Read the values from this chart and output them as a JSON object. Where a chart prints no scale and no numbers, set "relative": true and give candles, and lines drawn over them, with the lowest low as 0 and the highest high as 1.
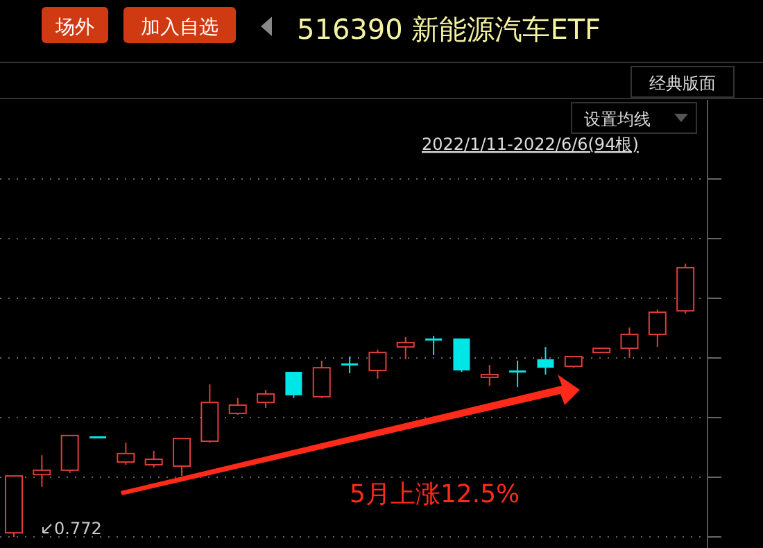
{
  "chart_data": {
    "type": "candlestick",
    "title": "516390 新能源汽车ETF",
    "relative": true,
    "grid": "y",
    "categories": [
      null,
      null,
      null,
      null,
      null,
      null,
      null,
      null,
      null,
      null,
      null,
      null,
      null,
      null,
      null,
      null,
      null,
      null,
      null,
      null,
      null,
      null,
      null,
      null,
      null
    ],
    "ohlc": [
      [
        0.015,
        0.223,
        0,
        0.223
      ],
      [
        0.228,
        0.299,
        0.183,
        0.244
      ],
      [
        0.244,
        0.371,
        0.234,
        0.371
      ],
      [
        0.368,
        0.368,
        0.363,
        0.363
      ],
      [
        0.274,
        0.345,
        0.264,
        0.305
      ],
      [
        0.264,
        0.315,
        0.254,
        0.284
      ],
      [
        0.259,
        0.36,
        0.223,
        0.36
      ],
      [
        0.35,
        0.558,
        0.345,
        0.492
      ],
      [
        0.452,
        0.508,
        0.447,
        0.482
      ],
      [
        0.492,
        0.538,
        0.472,
        0.523
      ],
      [
        0.604,
        0.604,
        0.508,
        0.518
      ],
      [
        0.513,
        0.645,
        0.508,
        0.619
      ],
      [
        0.635,
        0.66,
        0.599,
        0.632
      ],
      [
        0.609,
        0.685,
        0.579,
        0.675
      ],
      [
        0.695,
        0.731,
        0.65,
        0.711
      ],
      [
        0.726,
        0.736,
        0.665,
        0.723
      ],
      [
        0.726,
        0.726,
        0.604,
        0.609
      ],
      [
        0.584,
        0.629,
        0.553,
        0.594
      ],
      [
        0.609,
        0.645,
        0.548,
        0.607
      ],
      [
        0.65,
        0.695,
        0.594,
        0.619
      ],
      [
        0.624,
        0.66,
        0.619,
        0.66
      ],
      [
        0.675,
        0.69,
        0.675,
        0.69
      ],
      [
        0.69,
        0.766,
        0.655,
        0.741
      ],
      [
        0.741,
        0.832,
        0.695,
        0.822
      ],
      [
        0.827,
        1,
        0.817,
        0.985
      ]
    ],
    "colors": [
      "#e03c3c",
      "#e03c3c",
      "#e03c3c",
      "#00e5e5",
      "#e03c3c",
      "#e03c3c",
      "#e03c3c",
      "#e03c3c",
      "#e03c3c",
      "#e03c3c",
      "#00e5e5",
      "#e03c3c",
      "#00e5e5",
      "#e03c3c",
      "#e03c3c",
      "#00e5e5",
      "#00e5e5",
      "#e03c3c",
      "#00e5e5",
      "#00e5e5",
      "#e03c3c",
      "#e03c3c",
      "#e03c3c",
      "#e03c3c",
      "#e03c3c"
    ],
    "annotations": [
      "场外",
      "加入自选",
      "经典版面",
      "设置均线",
      "2022/1/11-2022/6/6(94根)",
      "0.772",
      "5月上涨12.5%"
    ]
  }
}
